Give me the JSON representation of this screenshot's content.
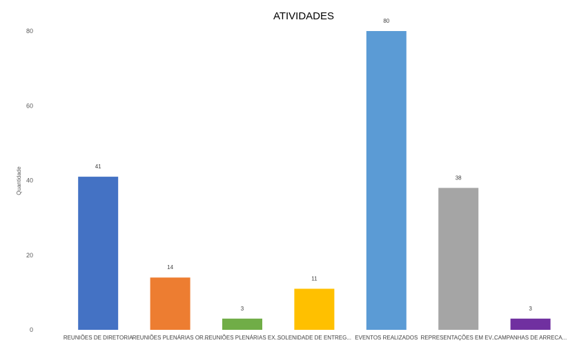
{
  "chart_data": {
    "type": "bar",
    "title": "ATIVIDADES",
    "ylabel": "Quantidade",
    "xlabel": "",
    "ylim": [
      0,
      80
    ],
    "yticks": [
      0,
      20,
      40,
      60,
      80
    ],
    "grid": false,
    "legend": "none",
    "categories": [
      "REUNIÕES DE DIRETORIA",
      "REUNIÕES PLENÁRIAS OR...",
      "REUNIÕES PLENÁRIAS EX...",
      "SOLENIDADE DE ENTREG...",
      "EVENTOS REALIZADOS",
      "REPRESENTAÇÕES EM EV...",
      "CAMPANHAS DE ARRECA..."
    ],
    "values": [
      41,
      14,
      3,
      11,
      80,
      38,
      3
    ],
    "colors": [
      "#4472C4",
      "#ED7D31",
      "#70AD47",
      "#FFC000",
      "#5B9BD5",
      "#A5A5A5",
      "#7030A0"
    ]
  }
}
